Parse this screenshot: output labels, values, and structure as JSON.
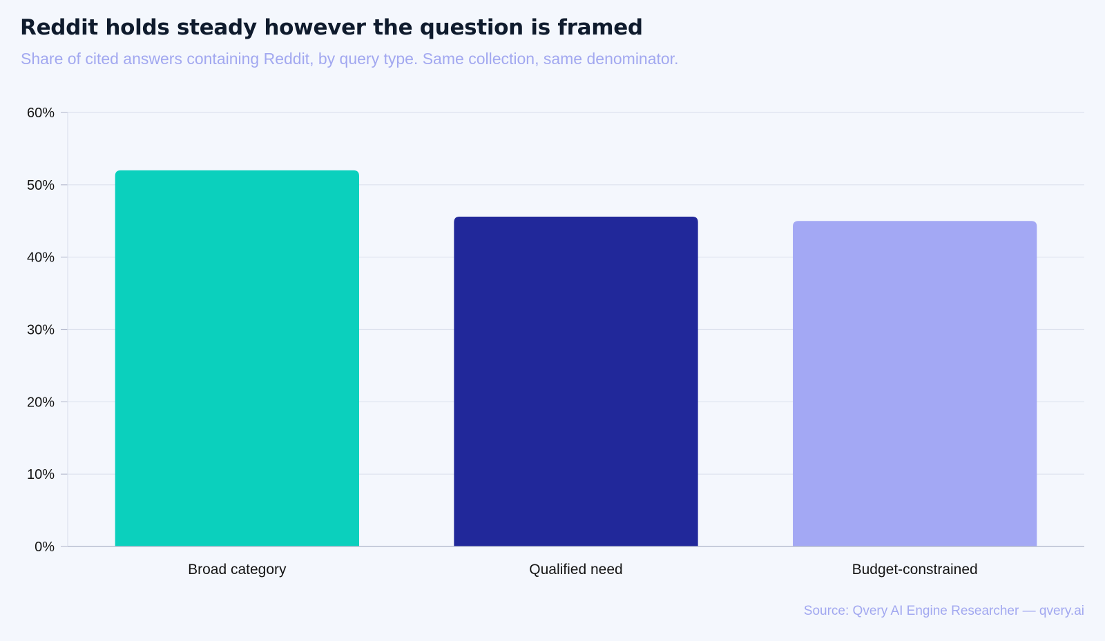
{
  "header": {
    "title": "Reddit holds steady however the question is framed",
    "subtitle": "Share of cited answers containing Reddit, by query type. Same collection, same denominator."
  },
  "footer": {
    "source": "Source: Qvery AI Engine Researcher — qvery.ai"
  },
  "colors": {
    "gridline": "#dde2ee",
    "axis": "#b8bdd0",
    "tick_text": "#141414",
    "bars": [
      "#0bd0bd",
      "#21289a",
      "#a3a8f4"
    ]
  },
  "chart_data": {
    "type": "bar",
    "title": "Reddit holds steady however the question is framed",
    "categories": [
      "Broad category",
      "Qualified need",
      "Budget-constrained"
    ],
    "values": [
      52,
      45.6,
      45
    ],
    "unit": "%",
    "xlabel": "",
    "ylabel": "",
    "ylim": [
      0,
      60
    ],
    "yticks": [
      0,
      10,
      20,
      30,
      40,
      50,
      60
    ],
    "ytick_labels": [
      "0%",
      "10%",
      "20%",
      "30%",
      "40%",
      "50%",
      "60%"
    ],
    "grid": true,
    "legend": "none"
  }
}
